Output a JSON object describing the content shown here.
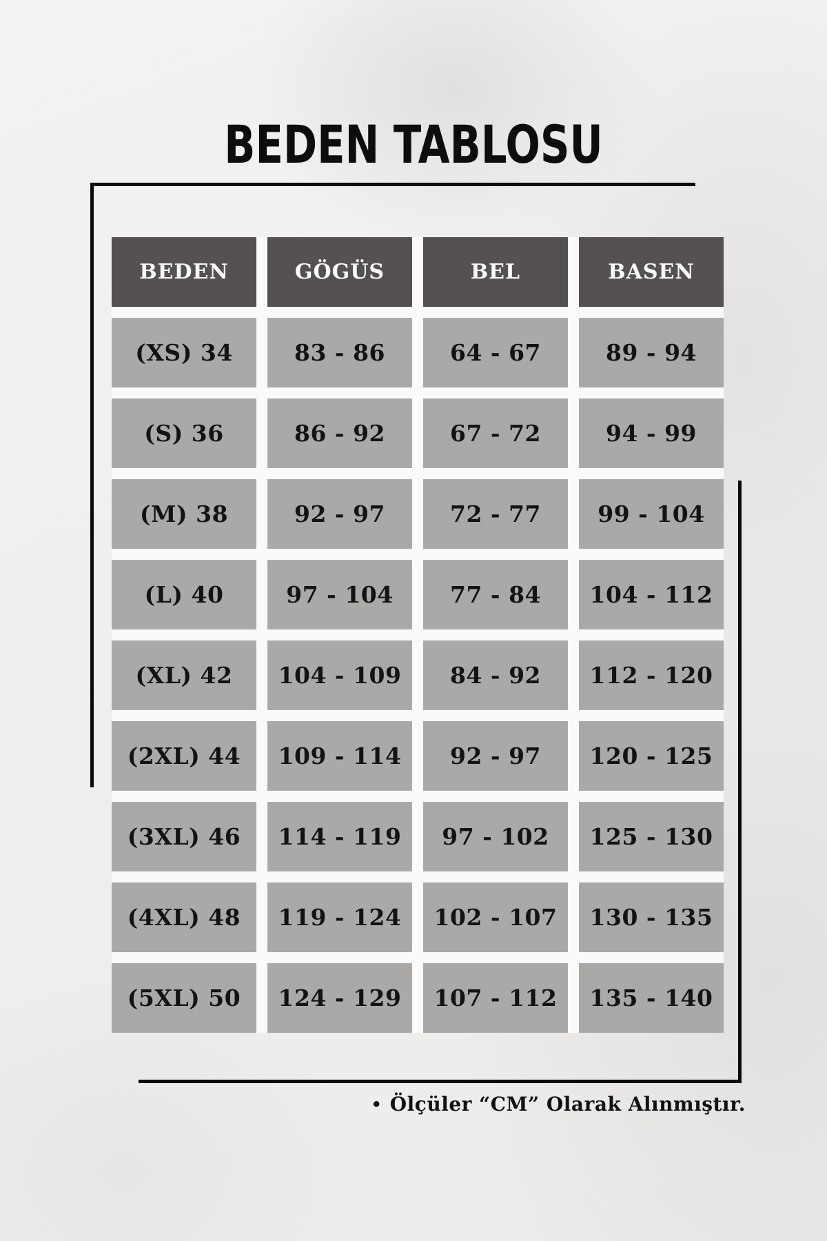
{
  "title": "BEDEN TABLOSU",
  "table": {
    "headers": [
      "BEDEN",
      "GÖGÜS",
      "BEL",
      "BASEN"
    ],
    "rows": [
      [
        "(XS) 34",
        "83 - 86",
        "64 - 67",
        "89 - 94"
      ],
      [
        "(S) 36",
        "86 - 92",
        "67 - 72",
        "94 - 99"
      ],
      [
        "(M) 38",
        "92 - 97",
        "72 - 77",
        "99 - 104"
      ],
      [
        "(L) 40",
        "97 - 104",
        "77 - 84",
        "104 - 112"
      ],
      [
        "(XL) 42",
        "104 - 109",
        "84 - 92",
        "112 - 120"
      ],
      [
        "(2XL) 44",
        "109 - 114",
        "92 - 97",
        "120 - 125"
      ],
      [
        "(3XL) 46",
        "114 - 119",
        "97 - 102",
        "125 - 130"
      ],
      [
        "(4XL) 48",
        "119 - 124",
        "102 - 107",
        "130 - 135"
      ],
      [
        "(5XL) 50",
        "124 - 129",
        "107 - 112",
        "135 - 140"
      ]
    ]
  },
  "note": {
    "bullet": "•",
    "text": "Ölçüler “CM” Olarak Alınmıştır."
  },
  "colors": {
    "page_bg": "#efeeed",
    "header_bg": "#555151",
    "header_text": "#fbfafa",
    "cell_bg": "#aba9a8",
    "cell_text": "#141313",
    "gutter": "#fafafa",
    "frame_line": "#0c0c0c"
  },
  "chart_data": {
    "type": "table",
    "title": "BEDEN TABLOSU",
    "columns": [
      "BEDEN",
      "GÖGÜS",
      "BEL",
      "BASEN"
    ],
    "rows": [
      [
        "(XS) 34",
        "83 - 86",
        "64 - 67",
        "89 - 94"
      ],
      [
        "(S) 36",
        "86 - 92",
        "67 - 72",
        "94 - 99"
      ],
      [
        "(M) 38",
        "92 - 97",
        "72 - 77",
        "99 - 104"
      ],
      [
        "(L) 40",
        "97 - 104",
        "77 - 84",
        "104 - 112"
      ],
      [
        "(XL) 42",
        "104 - 109",
        "84 - 92",
        "112 - 120"
      ],
      [
        "(2XL) 44",
        "109 - 114",
        "92 - 97",
        "120 - 125"
      ],
      [
        "(3XL) 46",
        "114 - 119",
        "97 - 102",
        "125 - 130"
      ],
      [
        "(4XL) 48",
        "119 - 124",
        "102 - 107",
        "130 - 135"
      ],
      [
        "(5XL) 50",
        "124 - 129",
        "107 - 112",
        "135 - 140"
      ]
    ],
    "note": "Ölçüler “CM” Olarak Alınmıştır.",
    "units": "cm"
  }
}
